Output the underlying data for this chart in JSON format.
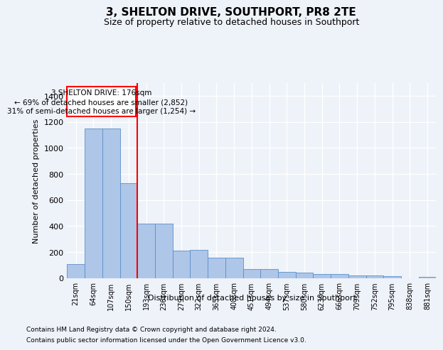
{
  "title": "3, SHELTON DRIVE, SOUTHPORT, PR8 2TE",
  "subtitle": "Size of property relative to detached houses in Southport",
  "xlabel": "Distribution of detached houses by size in Southport",
  "ylabel": "Number of detached properties",
  "footer_line1": "Contains HM Land Registry data © Crown copyright and database right 2024.",
  "footer_line2": "Contains public sector information licensed under the Open Government Licence v3.0.",
  "bin_labels": [
    "21sqm",
    "64sqm",
    "107sqm",
    "150sqm",
    "193sqm",
    "236sqm",
    "279sqm",
    "322sqm",
    "365sqm",
    "408sqm",
    "451sqm",
    "494sqm",
    "537sqm",
    "580sqm",
    "623sqm",
    "666sqm",
    "709sqm",
    "752sqm",
    "795sqm",
    "838sqm",
    "881sqm"
  ],
  "hist_values": [
    105,
    1150,
    1150,
    730,
    415,
    415,
    210,
    215,
    155,
    155,
    70,
    70,
    47,
    42,
    28,
    28,
    18,
    18,
    15,
    0,
    10
  ],
  "bar_color": "#aec6e8",
  "bar_edge_color": "#5b8fc9",
  "red_line_x": 3.5,
  "annotation_line1": "3 SHELTON DRIVE: 176sqm",
  "annotation_line2": "← 69% of detached houses are smaller (2,852)",
  "annotation_line3": "31% of semi-detached houses are larger (1,254) →",
  "ylim": [
    0,
    1500
  ],
  "yticks": [
    0,
    200,
    400,
    600,
    800,
    1000,
    1200,
    1400
  ],
  "background_color": "#eef2f9",
  "plot_bg_color": "#eef2f9",
  "grid_color": "#ffffff"
}
